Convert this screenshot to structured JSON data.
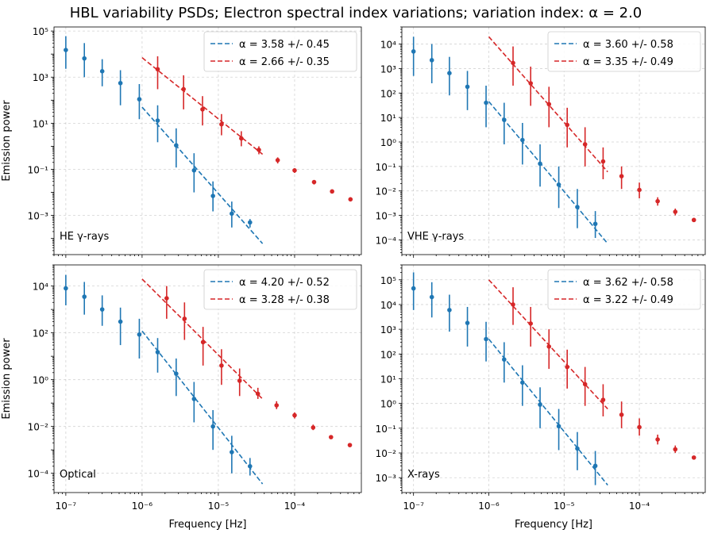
{
  "figure": {
    "title": "HBL variability PSDs; Electron spectral index variations; variation index: α = 2.0"
  },
  "colors": {
    "blue": "#1f77b4",
    "red": "#d62728"
  },
  "chart_data": [
    {
      "type": "scatter",
      "name": "HE",
      "panel_label": "HE γ-rays",
      "ylabel": "Emission power",
      "xlabel": "",
      "xlim": [
        7e-08,
        0.00075
      ],
      "ylim": [
        2e-05,
        150000.0
      ],
      "y_ticks": [
        {
          "v": 100000.0,
          "label": "10⁵"
        },
        {
          "v": 1000.0,
          "label": "10³"
        },
        {
          "v": 10.0,
          "label": "10¹"
        },
        {
          "v": 0.1,
          "label": "10⁻¹"
        },
        {
          "v": 0.001,
          "label": "10⁻³"
        }
      ],
      "series": [
        {
          "name": "blue",
          "color": "#1f77b4",
          "points": [
            {
              "x": 1e-07,
              "y": 15000.0,
              "lo": 2300.0,
              "hi": 60000.0
            },
            {
              "x": 1.75e-07,
              "y": 6500.0,
              "lo": 1000.0,
              "hi": 30000.0
            },
            {
              "x": 3e-07,
              "y": 1800.0,
              "lo": 400.0,
              "hi": 6000.0
            },
            {
              "x": 5.2e-07,
              "y": 550.0,
              "lo": 60.0,
              "hi": 2000.0
            },
            {
              "x": 9.2e-07,
              "y": 110.0,
              "lo": 15.0,
              "hi": 500.0
            },
            {
              "x": 1.6e-06,
              "y": 13.0,
              "lo": 1.5,
              "hi": 60.0
            },
            {
              "x": 2.8e-06,
              "y": 1.1,
              "lo": 0.12,
              "hi": 6.0
            },
            {
              "x": 4.8e-06,
              "y": 0.09,
              "lo": 0.01,
              "hi": 0.5
            },
            {
              "x": 8.5e-06,
              "y": 0.007,
              "lo": 0.0015,
              "hi": 0.03
            },
            {
              "x": 1.5e-05,
              "y": 0.0012,
              "lo": 0.0003,
              "hi": 0.004
            },
            {
              "x": 2.6e-05,
              "y": 0.0005,
              "lo": 0.0003,
              "hi": 0.0007
            }
          ],
          "fit": {
            "x0": 1e-06,
            "x1": 3.8e-05,
            "y0": 50.0,
            "y1": 6e-05,
            "label": "α = 3.58 +/- 0.45"
          }
        },
        {
          "name": "red",
          "color": "#d62728",
          "points": [
            {
              "x": 1.6e-06,
              "y": 2200.0,
              "lo": 300.0,
              "hi": 8000.0
            },
            {
              "x": 3.5e-06,
              "y": 300.0,
              "lo": 40.0,
              "hi": 1200.0
            },
            {
              "x": 6.2e-06,
              "y": 40.0,
              "lo": 8.0,
              "hi": 150.0
            },
            {
              "x": 1.1e-05,
              "y": 9.0,
              "lo": 3.0,
              "hi": 25.0
            },
            {
              "x": 2e-05,
              "y": 2.2,
              "lo": 1.0,
              "hi": 4.5
            },
            {
              "x": 3.4e-05,
              "y": 0.7,
              "lo": 0.45,
              "hi": 1.0
            },
            {
              "x": 6e-05,
              "y": 0.25,
              "lo": 0.18,
              "hi": 0.33
            },
            {
              "x": 0.0001,
              "y": 0.09,
              "lo": 0.07,
              "hi": 0.11
            },
            {
              "x": 0.00018,
              "y": 0.028,
              "lo": 0.022,
              "hi": 0.034
            },
            {
              "x": 0.00031,
              "y": 0.011,
              "lo": 0.009,
              "hi": 0.013
            },
            {
              "x": 0.00054,
              "y": 0.005,
              "lo": 0.0042,
              "hi": 0.0058
            }
          ],
          "fit": {
            "x0": 1e-06,
            "x1": 3.8e-05,
            "y0": 7000.0,
            "y1": 0.45,
            "label": "α = 2.66 +/- 0.35"
          }
        }
      ]
    },
    {
      "type": "scatter",
      "name": "VHE",
      "panel_label": "VHE γ-rays",
      "ylabel": "",
      "xlabel": "",
      "xlim": [
        7e-08,
        0.00075
      ],
      "ylim": [
        2.5e-05,
        50000.0
      ],
      "y_ticks": [
        {
          "v": 10000.0,
          "label": "10⁴"
        },
        {
          "v": 1000.0,
          "label": "10³"
        },
        {
          "v": 100.0,
          "label": "10²"
        },
        {
          "v": 10.0,
          "label": "10¹"
        },
        {
          "v": 1.0,
          "label": "10⁰"
        },
        {
          "v": 0.1,
          "label": "10⁻¹"
        },
        {
          "v": 0.01,
          "label": "10⁻²"
        },
        {
          "v": 0.001,
          "label": "10⁻³"
        },
        {
          "v": 0.0001,
          "label": "10⁻⁴"
        }
      ],
      "series": [
        {
          "name": "blue",
          "color": "#1f77b4",
          "points": [
            {
              "x": 1e-07,
              "y": 5000.0,
              "lo": 500.0,
              "hi": 20000.0
            },
            {
              "x": 1.75e-07,
              "y": 2200.0,
              "lo": 250.0,
              "hi": 10000.0
            },
            {
              "x": 3e-07,
              "y": 650.0,
              "lo": 80.0,
              "hi": 3000.0
            },
            {
              "x": 5.2e-07,
              "y": 180.0,
              "lo": 20.0,
              "hi": 800.0
            },
            {
              "x": 9.2e-07,
              "y": 40.0,
              "lo": 4.0,
              "hi": 200.0
            },
            {
              "x": 1.6e-06,
              "y": 8.0,
              "lo": 0.8,
              "hi": 40.0
            },
            {
              "x": 2.8e-06,
              "y": 1.2,
              "lo": 0.12,
              "hi": 6.0
            },
            {
              "x": 4.8e-06,
              "y": 0.13,
              "lo": 0.015,
              "hi": 0.8
            },
            {
              "x": 8.5e-06,
              "y": 0.018,
              "lo": 0.002,
              "hi": 0.1
            },
            {
              "x": 1.5e-05,
              "y": 0.0022,
              "lo": 0.0003,
              "hi": 0.012
            },
            {
              "x": 2.6e-05,
              "y": 0.00045,
              "lo": 0.00012,
              "hi": 0.0015
            }
          ],
          "fit": {
            "x0": 1e-06,
            "x1": 3.8e-05,
            "y0": 45.0,
            "y1": 7e-05,
            "label": "α = 3.60 +/- 0.58"
          }
        },
        {
          "name": "red",
          "color": "#d62728",
          "points": [
            {
              "x": 2.1e-06,
              "y": 1700.0,
              "lo": 200.0,
              "hi": 8000.0
            },
            {
              "x": 3.6e-06,
              "y": 250.0,
              "lo": 30.0,
              "hi": 1200.0
            },
            {
              "x": 6.3e-06,
              "y": 35.0,
              "lo": 4.0,
              "hi": 180.0
            },
            {
              "x": 1.1e-05,
              "y": 5.0,
              "lo": 0.6,
              "hi": 25.0
            },
            {
              "x": 1.9e-05,
              "y": 0.8,
              "lo": 0.1,
              "hi": 4.0
            },
            {
              "x": 3.3e-05,
              "y": 0.16,
              "lo": 0.03,
              "hi": 0.6
            },
            {
              "x": 5.8e-05,
              "y": 0.04,
              "lo": 0.012,
              "hi": 0.1
            },
            {
              "x": 0.0001,
              "y": 0.011,
              "lo": 0.005,
              "hi": 0.022
            },
            {
              "x": 0.000175,
              "y": 0.0038,
              "lo": 0.0025,
              "hi": 0.0055
            },
            {
              "x": 0.0003,
              "y": 0.0014,
              "lo": 0.001,
              "hi": 0.0019
            },
            {
              "x": 0.00053,
              "y": 0.00065,
              "lo": 0.00055,
              "hi": 0.00075
            }
          ],
          "fit": {
            "x0": 1e-06,
            "x1": 3.8e-05,
            "y0": 20000.0,
            "y1": 0.06,
            "label": "α = 3.35 +/- 0.49"
          }
        }
      ]
    },
    {
      "type": "scatter",
      "name": "Optical",
      "panel_label": "Optical",
      "ylabel": "Emission power",
      "xlabel": "Frequency [Hz]",
      "xlim": [
        7e-08,
        0.00075
      ],
      "ylim": [
        1.5e-05,
        80000.0
      ],
      "y_ticks": [
        {
          "v": 10000.0,
          "label": "10⁴"
        },
        {
          "v": 100.0,
          "label": "10²"
        },
        {
          "v": 1.0,
          "label": "10⁰"
        },
        {
          "v": 0.01,
          "label": "10⁻²"
        },
        {
          "v": 0.0001,
          "label": "10⁻⁴"
        }
      ],
      "x_ticks": [
        {
          "v": 1e-07,
          "label": "10⁻⁷"
        },
        {
          "v": 1e-06,
          "label": "10⁻⁶"
        },
        {
          "v": 1e-05,
          "label": "10⁻⁵"
        },
        {
          "v": 0.0001,
          "label": "10⁻⁴"
        }
      ],
      "series": [
        {
          "name": "blue",
          "color": "#1f77b4",
          "points": [
            {
              "x": 1e-07,
              "y": 8000.0,
              "lo": 1500.0,
              "hi": 30000.0
            },
            {
              "x": 1.75e-07,
              "y": 3500.0,
              "lo": 600.0,
              "hi": 15000.0
            },
            {
              "x": 3e-07,
              "y": 1000.0,
              "lo": 200.0,
              "hi": 4000.0
            },
            {
              "x": 5.2e-07,
              "y": 300.0,
              "lo": 30.0,
              "hi": 1200.0
            },
            {
              "x": 9.2e-07,
              "y": 85.0,
              "lo": 8.0,
              "hi": 400.0
            },
            {
              "x": 1.6e-06,
              "y": 15.0,
              "lo": 2.0,
              "hi": 60.0
            },
            {
              "x": 2.8e-06,
              "y": 1.8,
              "lo": 0.2,
              "hi": 8.0
            },
            {
              "x": 4.8e-06,
              "y": 0.15,
              "lo": 0.015,
              "hi": 0.8
            },
            {
              "x": 8.5e-06,
              "y": 0.01,
              "lo": 0.001,
              "hi": 0.05
            },
            {
              "x": 1.5e-05,
              "y": 0.0008,
              "lo": 0.0001,
              "hi": 0.004
            },
            {
              "x": 2.6e-05,
              "y": 0.0002,
              "lo": 8e-05,
              "hi": 0.00045
            }
          ],
          "fit": {
            "x0": 1e-06,
            "x1": 3.8e-05,
            "y0": 120.0,
            "y1": 3.5e-05,
            "label": "α = 4.20 +/- 0.52"
          }
        },
        {
          "name": "red",
          "color": "#d62728",
          "points": [
            {
              "x": 2.1e-06,
              "y": 3000.0,
              "lo": 400.0,
              "hi": 10000.0
            },
            {
              "x": 3.6e-06,
              "y": 400.0,
              "lo": 50.0,
              "hi": 2000.0
            },
            {
              "x": 6.3e-06,
              "y": 40.0,
              "lo": 4.0,
              "hi": 180.0
            },
            {
              "x": 1.1e-05,
              "y": 4.0,
              "lo": 0.6,
              "hi": 20.0
            },
            {
              "x": 1.9e-05,
              "y": 0.9,
              "lo": 0.2,
              "hi": 3.0
            },
            {
              "x": 3.3e-05,
              "y": 0.25,
              "lo": 0.15,
              "hi": 0.45
            },
            {
              "x": 5.8e-05,
              "y": 0.08,
              "lo": 0.055,
              "hi": 0.12
            },
            {
              "x": 0.0001,
              "y": 0.03,
              "lo": 0.022,
              "hi": 0.04
            },
            {
              "x": 0.000175,
              "y": 0.009,
              "lo": 0.007,
              "hi": 0.012
            },
            {
              "x": 0.0003,
              "y": 0.0035,
              "lo": 0.003,
              "hi": 0.0042
            },
            {
              "x": 0.00053,
              "y": 0.0016,
              "lo": 0.0014,
              "hi": 0.0018
            }
          ],
          "fit": {
            "x0": 1e-06,
            "x1": 3.8e-05,
            "y0": 20000.0,
            "y1": 0.15,
            "label": "α = 3.28 +/- 0.38"
          }
        }
      ]
    },
    {
      "type": "scatter",
      "name": "X-rays",
      "panel_label": "X-rays",
      "ylabel": "",
      "xlabel": "Frequency [Hz]",
      "xlim": [
        7e-08,
        0.00075
      ],
      "ylim": [
        0.00025,
        400000.0
      ],
      "y_ticks": [
        {
          "v": 100000.0,
          "label": "10⁵"
        },
        {
          "v": 10000.0,
          "label": "10⁴"
        },
        {
          "v": 1000.0,
          "label": "10³"
        },
        {
          "v": 100.0,
          "label": "10²"
        },
        {
          "v": 10.0,
          "label": "10¹"
        },
        {
          "v": 1.0,
          "label": "10⁰"
        },
        {
          "v": 0.1,
          "label": "10⁻¹"
        },
        {
          "v": 0.01,
          "label": "10⁻²"
        },
        {
          "v": 0.001,
          "label": "10⁻³"
        }
      ],
      "x_ticks": [
        {
          "v": 1e-07,
          "label": "10⁻⁷"
        },
        {
          "v": 1e-06,
          "label": "10⁻⁶"
        },
        {
          "v": 1e-05,
          "label": "10⁻⁵"
        },
        {
          "v": 0.0001,
          "label": "10⁻⁴"
        }
      ],
      "series": [
        {
          "name": "blue",
          "color": "#1f77b4",
          "points": [
            {
              "x": 1e-07,
              "y": 45000.0,
              "lo": 6000.0,
              "hi": 200000.0
            },
            {
              "x": 1.75e-07,
              "y": 20000.0,
              "lo": 3000.0,
              "hi": 80000.0
            },
            {
              "x": 3e-07,
              "y": 6000.0,
              "lo": 800.0,
              "hi": 25000.0
            },
            {
              "x": 5.2e-07,
              "y": 1800.0,
              "lo": 200.0,
              "hi": 8000.0
            },
            {
              "x": 9.2e-07,
              "y": 400.0,
              "lo": 50.0,
              "hi": 2000.0
            },
            {
              "x": 1.6e-06,
              "y": 60.0,
              "lo": 7.0,
              "hi": 300.0
            },
            {
              "x": 2.8e-06,
              "y": 7.0,
              "lo": 0.8,
              "hi": 35.0
            },
            {
              "x": 4.8e-06,
              "y": 0.9,
              "lo": 0.1,
              "hi": 4.5
            },
            {
              "x": 8.5e-06,
              "y": 0.12,
              "lo": 0.013,
              "hi": 0.6
            },
            {
              "x": 1.5e-05,
              "y": 0.015,
              "lo": 0.002,
              "hi": 0.07
            },
            {
              "x": 2.6e-05,
              "y": 0.003,
              "lo": 0.0005,
              "hi": 0.012
            }
          ],
          "fit": {
            "x0": 1e-06,
            "x1": 3.8e-05,
            "y0": 400.0,
            "y1": 0.0005,
            "label": "α = 3.62 +/- 0.58"
          }
        },
        {
          "name": "red",
          "color": "#d62728",
          "points": [
            {
              "x": 2.1e-06,
              "y": 10000.0,
              "lo": 1500.0,
              "hi": 50000.0
            },
            {
              "x": 3.6e-06,
              "y": 1700.0,
              "lo": 200.0,
              "hi": 8000.0
            },
            {
              "x": 6.3e-06,
              "y": 200.0,
              "lo": 25.0,
              "hi": 1000.0
            },
            {
              "x": 1.1e-05,
              "y": 30.0,
              "lo": 4.0,
              "hi": 150.0
            },
            {
              "x": 1.9e-05,
              "y": 6.0,
              "lo": 0.8,
              "hi": 30.0
            },
            {
              "x": 3.3e-05,
              "y": 1.4,
              "lo": 0.3,
              "hi": 6.0
            },
            {
              "x": 5.8e-05,
              "y": 0.35,
              "lo": 0.1,
              "hi": 1.2
            },
            {
              "x": 0.0001,
              "y": 0.11,
              "lo": 0.05,
              "hi": 0.25
            },
            {
              "x": 0.000175,
              "y": 0.035,
              "lo": 0.022,
              "hi": 0.055
            },
            {
              "x": 0.0003,
              "y": 0.014,
              "lo": 0.01,
              "hi": 0.02
            },
            {
              "x": 0.00053,
              "y": 0.0065,
              "lo": 0.0055,
              "hi": 0.0075
            }
          ],
          "fit": {
            "x0": 1e-06,
            "x1": 3.8e-05,
            "y0": 100000.0,
            "y1": 0.6,
            "label": "α = 3.22 +/- 0.49"
          }
        }
      ]
    }
  ]
}
